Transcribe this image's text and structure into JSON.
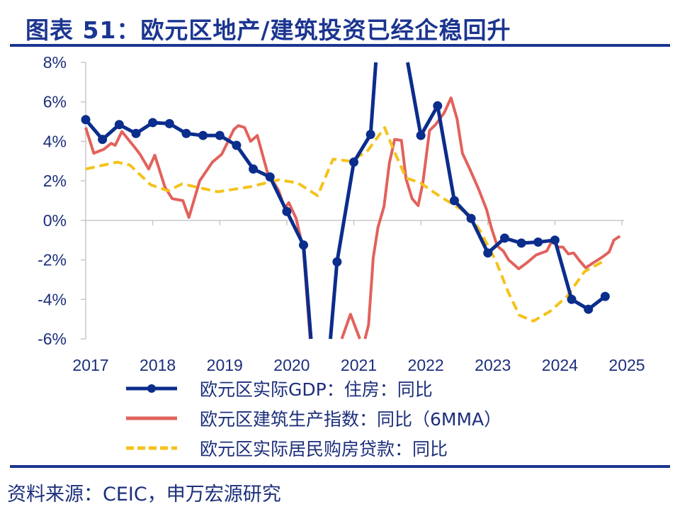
{
  "title": "图表 51：欧元区地产/建筑投资已经企稳回升",
  "source": "资料来源：CEIC，申万宏源研究",
  "colors": {
    "title": "#1b3590",
    "gdp": "#0b2d8c",
    "construction": "#e2625c",
    "loans": "#f5c21b",
    "axis": "#c8c8c8"
  },
  "chart_data": {
    "type": "line",
    "title": "",
    "xlabel": "",
    "ylabel": "",
    "xlim": [
      2017,
      2025
    ],
    "ylim": [
      -6,
      8
    ],
    "x_ticks": [
      "2017",
      "2018",
      "2019",
      "2020",
      "2021",
      "2022",
      "2023",
      "2024",
      "2025"
    ],
    "y_ticks": [
      "8%",
      "6%",
      "4%",
      "2%",
      "0%",
      "-2%",
      "-4%",
      "-6%"
    ],
    "y_tick_values": [
      8,
      6,
      4,
      2,
      0,
      -2,
      -4,
      -6
    ],
    "grid": false,
    "legend_position": "bottom",
    "series": [
      {
        "name": "欧元区实际GDP：住房：同比",
        "style": "solid-with-markers",
        "x": [
          2017.0,
          2017.25,
          2017.5,
          2017.75,
          2018.0,
          2018.25,
          2018.5,
          2018.75,
          2019.0,
          2019.25,
          2019.5,
          2019.75,
          2020.0,
          2020.25,
          2020.5,
          2020.75,
          2021.0,
          2021.25,
          2021.5,
          2021.75,
          2022.0,
          2022.25,
          2022.5,
          2022.75,
          2023.0,
          2023.25,
          2023.5,
          2023.75,
          2024.0,
          2024.25,
          2024.5,
          2024.75
        ],
        "y": [
          5.1,
          4.1,
          4.85,
          4.4,
          4.95,
          4.9,
          4.4,
          4.3,
          4.3,
          3.8,
          2.6,
          2.2,
          0.45,
          -1.25,
          -12,
          -2.1,
          2.95,
          4.35,
          16,
          9,
          4.3,
          5.8,
          1.0,
          0.1,
          -1.65,
          -0.9,
          -1.15,
          -1.1,
          -1.0,
          -4.0,
          -4.5,
          -3.85
        ]
      },
      {
        "name": "欧元区建筑生产指数：同比（6MMA）",
        "style": "solid",
        "x": [
          2017.0,
          2017.12,
          2017.27,
          2017.38,
          2017.44,
          2017.54,
          2017.73,
          2017.81,
          2017.94,
          2018.03,
          2018.18,
          2018.29,
          2018.45,
          2018.54,
          2018.7,
          2018.89,
          2019.03,
          2019.21,
          2019.28,
          2019.37,
          2019.46,
          2019.56,
          2019.71,
          2019.88,
          2019.97,
          2020.03,
          2020.14,
          2020.25,
          2020.35,
          2020.45,
          2020.6,
          2020.82,
          2020.95,
          2021.09,
          2021.16,
          2021.22,
          2021.29,
          2021.36,
          2021.45,
          2021.53,
          2021.61,
          2021.71,
          2021.78,
          2021.87,
          2021.96,
          2022.03,
          2022.13,
          2022.22,
          2022.35,
          2022.45,
          2022.54,
          2022.62,
          2022.73,
          2022.86,
          2022.98,
          2023.05,
          2023.14,
          2023.23,
          2023.31,
          2023.46,
          2023.58,
          2023.72,
          2023.88,
          2023.97,
          2024.04,
          2024.12,
          2024.2,
          2024.28,
          2024.37,
          2024.46,
          2024.57,
          2024.71,
          2024.81,
          2024.88,
          2024.97
        ],
        "y": [
          4.7,
          3.4,
          3.6,
          3.9,
          3.8,
          4.5,
          3.7,
          3.35,
          2.6,
          3.3,
          1.7,
          1.1,
          1.0,
          0.15,
          2.0,
          2.95,
          3.35,
          4.6,
          4.8,
          4.7,
          4.0,
          4.3,
          2.45,
          1.5,
          0.6,
          0.9,
          0.1,
          -1.55,
          -6.1,
          -20,
          -15,
          -6.0,
          -4.75,
          -6.0,
          -6.1,
          -5.3,
          -1.9,
          -0.35,
          0.7,
          2.9,
          4.1,
          4.05,
          2.1,
          1.1,
          0.75,
          1.9,
          4.55,
          4.85,
          5.45,
          6.2,
          5.15,
          3.4,
          2.6,
          1.6,
          0.55,
          -0.35,
          -1.3,
          -1.55,
          -2.0,
          -2.45,
          -2.15,
          -1.75,
          -1.55,
          -0.95,
          -1.35,
          -1.35,
          -1.7,
          -1.65,
          -2.05,
          -2.4,
          -2.15,
          -1.85,
          -1.6,
          -1.0,
          -0.8
        ]
      },
      {
        "name": "欧元区实际居民购房贷款：同比",
        "style": "dashed",
        "x": [
          2017.0,
          2017.47,
          2017.66,
          2017.97,
          2018.23,
          2018.44,
          2018.97,
          2019.45,
          2019.88,
          2020.16,
          2020.46,
          2020.69,
          2020.95,
          2021.2,
          2021.46,
          2021.59,
          2021.78,
          2021.99,
          2022.27,
          2022.7,
          2022.88,
          2023.12,
          2023.3,
          2023.47,
          2023.68,
          2023.93,
          2024.18,
          2024.44,
          2024.73
        ],
        "y": [
          2.6,
          2.95,
          2.8,
          1.8,
          1.5,
          1.85,
          1.45,
          1.7,
          2.05,
          1.9,
          1.25,
          3.1,
          3.0,
          3.5,
          4.7,
          3.6,
          2.15,
          1.9,
          1.25,
          0.35,
          -0.5,
          -2.05,
          -3.6,
          -4.8,
          -5.1,
          -4.6,
          -3.85,
          -2.6,
          -2.05
        ]
      }
    ]
  }
}
